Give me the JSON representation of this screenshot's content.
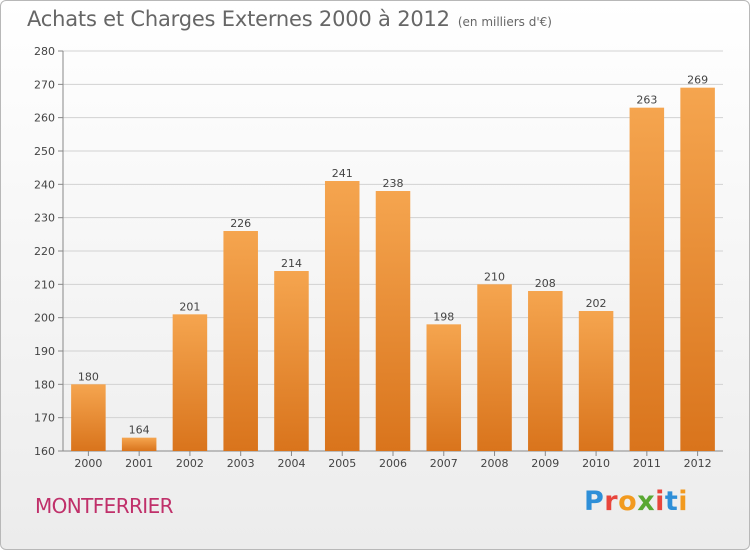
{
  "header": {
    "title": "Achats et Charges Externes 2000 à 2012",
    "subtitle": "(en milliers d'€)"
  },
  "footer": {
    "city": "MONTFERRIER",
    "logo_text": "Proxiti",
    "logo_colors": [
      "#2e8fd8",
      "#e8453c",
      "#f29a1f",
      "#5aa832",
      "#e8453c",
      "#2e8fd8",
      "#f29a1f"
    ]
  },
  "chart_data": {
    "type": "bar",
    "title": "Achats et Charges Externes 2000 à 2012",
    "subtitle": "(en milliers d'€)",
    "categories": [
      "2000",
      "2001",
      "2002",
      "2003",
      "2004",
      "2005",
      "2006",
      "2007",
      "2008",
      "2009",
      "2010",
      "2011",
      "2012"
    ],
    "values": [
      180,
      164,
      201,
      226,
      214,
      241,
      238,
      198,
      210,
      208,
      202,
      263,
      269
    ],
    "ylim": [
      160,
      280
    ],
    "yticks": [
      160,
      170,
      180,
      190,
      200,
      210,
      220,
      230,
      240,
      250,
      260,
      270,
      280
    ],
    "grid": true,
    "data_labels": true,
    "bar_color_top": "#f5a54f",
    "bar_color_bottom": "#d9741c"
  }
}
